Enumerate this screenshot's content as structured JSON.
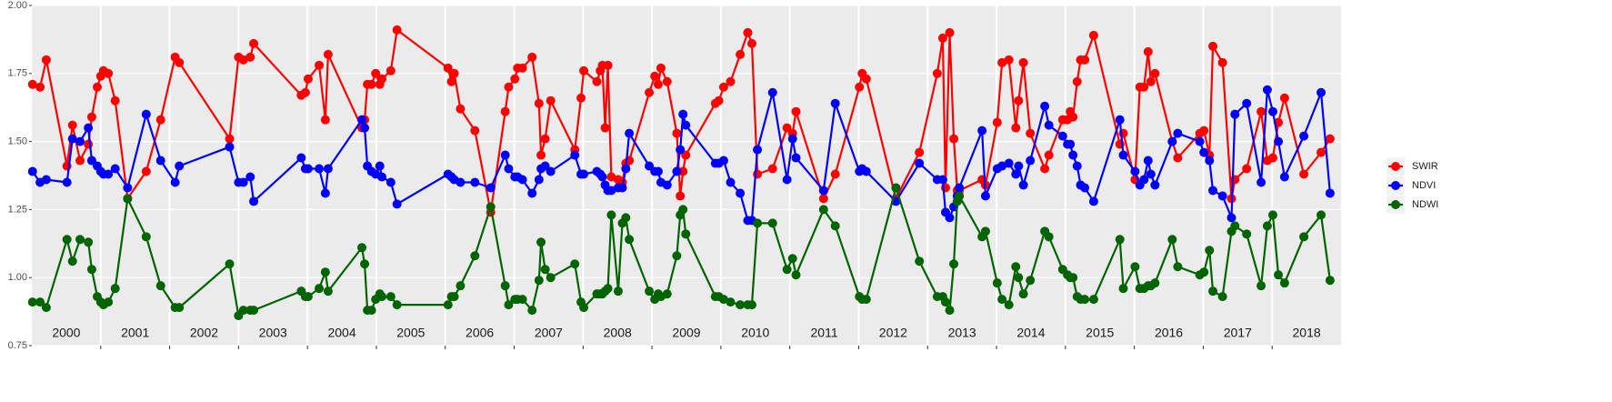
{
  "chart_data": {
    "type": "line",
    "x": [
      2000.01,
      2000.12,
      2000.21,
      2000.51,
      2000.59,
      2000.7,
      2000.82,
      2000.87,
      2000.95,
      2001.0,
      2001.04,
      2001.11,
      2001.21,
      2001.39,
      2001.66,
      2001.87,
      2002.08,
      2002.14,
      2002.87,
      2003.0,
      2003.07,
      2003.17,
      2003.22,
      2003.91,
      2003.97,
      2004.01,
      2004.17,
      2004.26,
      2004.3,
      2004.79,
      2004.83,
      2004.87,
      2004.93,
      2004.99,
      2005.05,
      2005.08,
      2005.21,
      2005.3,
      2006.04,
      2006.09,
      2006.13,
      2006.22,
      2006.43,
      2006.66,
      2006.87,
      2006.92,
      2007.01,
      2007.05,
      2007.12,
      2007.26,
      2007.36,
      2007.39,
      2007.45,
      2007.53,
      2007.88,
      2007.97,
      2008.01,
      2008.2,
      2008.25,
      2008.28,
      2008.32,
      2008.36,
      2008.41,
      2008.51,
      2008.57,
      2008.62,
      2008.67,
      2008.96,
      2009.04,
      2009.09,
      2009.13,
      2009.22,
      2009.36,
      2009.41,
      2009.45,
      2009.49,
      2009.92,
      2009.97,
      2010.04,
      2010.14,
      2010.28,
      2010.39,
      2010.45,
      2010.53,
      2010.75,
      2010.96,
      2011.04,
      2011.09,
      2011.49,
      2011.66,
      2012.01,
      2012.05,
      2012.11,
      2012.54,
      2012.88,
      2013.14,
      2013.22,
      2013.26,
      2013.32,
      2013.38,
      2013.43,
      2013.46,
      2013.79,
      2013.84,
      2014.01,
      2014.08,
      2014.18,
      2014.28,
      2014.32,
      2014.39,
      2014.49,
      2014.7,
      2014.76,
      2014.96,
      2015.03,
      2015.07,
      2015.11,
      2015.17,
      2015.22,
      2015.28,
      2015.41,
      2015.79,
      2015.84,
      2016.01,
      2016.08,
      2016.14,
      2016.2,
      2016.24,
      2016.3,
      2016.55,
      2016.63,
      2016.95,
      2017.01,
      2017.09,
      2017.14,
      2017.28,
      2017.41,
      2017.46,
      2017.63,
      2017.84,
      2017.93,
      2018.01,
      2018.09,
      2018.18,
      2018.46,
      2018.71,
      2018.84
    ],
    "series": [
      {
        "name": "SWIR",
        "color": "#ff0000",
        "values": [
          1.71,
          1.7,
          1.8,
          1.41,
          1.56,
          1.43,
          1.49,
          1.59,
          1.7,
          1.74,
          1.76,
          1.75,
          1.65,
          1.29,
          1.39,
          1.58,
          1.81,
          1.79,
          1.51,
          1.81,
          1.8,
          1.81,
          1.86,
          1.67,
          1.68,
          1.73,
          1.78,
          1.58,
          1.82,
          1.55,
          1.58,
          1.71,
          1.71,
          1.75,
          1.71,
          1.73,
          1.76,
          1.91,
          1.77,
          1.72,
          1.75,
          1.62,
          1.54,
          1.24,
          1.61,
          1.7,
          1.73,
          1.77,
          1.77,
          1.81,
          1.64,
          1.45,
          1.51,
          1.65,
          1.47,
          1.66,
          1.76,
          1.72,
          1.76,
          1.78,
          1.55,
          1.78,
          1.37,
          1.36,
          1.35,
          1.42,
          1.43,
          1.68,
          1.74,
          1.71,
          1.77,
          1.72,
          1.53,
          1.3,
          1.39,
          1.45,
          1.64,
          1.65,
          1.7,
          1.72,
          1.82,
          1.9,
          1.86,
          1.38,
          1.4,
          1.55,
          1.53,
          1.61,
          1.29,
          1.38,
          1.7,
          1.75,
          1.73,
          1.29,
          1.46,
          1.75,
          1.88,
          1.33,
          1.9,
          1.51,
          1.32,
          1.32,
          1.36,
          1.34,
          1.57,
          1.79,
          1.8,
          1.55,
          1.65,
          1.79,
          1.53,
          1.4,
          1.45,
          1.58,
          1.58,
          1.61,
          1.59,
          1.72,
          1.8,
          1.8,
          1.89,
          1.49,
          1.53,
          1.36,
          1.7,
          1.7,
          1.83,
          1.72,
          1.75,
          1.5,
          1.44,
          1.53,
          1.54,
          1.45,
          1.85,
          1.79,
          1.29,
          1.36,
          1.4,
          1.61,
          1.43,
          1.44,
          1.57,
          1.66,
          1.38,
          1.46,
          1.51
        ]
      },
      {
        "name": "NDVI",
        "color": "#0000ff",
        "values": [
          1.39,
          1.35,
          1.36,
          1.35,
          1.51,
          1.5,
          1.55,
          1.43,
          1.41,
          1.39,
          1.38,
          1.38,
          1.4,
          1.33,
          1.6,
          1.43,
          1.35,
          1.41,
          1.48,
          1.35,
          1.35,
          1.37,
          1.28,
          1.44,
          1.4,
          1.4,
          1.4,
          1.31,
          1.4,
          1.58,
          1.55,
          1.41,
          1.39,
          1.38,
          1.41,
          1.37,
          1.35,
          1.27,
          1.38,
          1.37,
          1.36,
          1.35,
          1.35,
          1.33,
          1.45,
          1.4,
          1.37,
          1.37,
          1.36,
          1.31,
          1.36,
          1.4,
          1.41,
          1.39,
          1.45,
          1.38,
          1.38,
          1.39,
          1.38,
          1.37,
          1.34,
          1.32,
          1.32,
          1.33,
          1.33,
          1.4,
          1.53,
          1.41,
          1.39,
          1.39,
          1.35,
          1.34,
          1.39,
          1.47,
          1.6,
          1.56,
          1.42,
          1.42,
          1.43,
          1.35,
          1.31,
          1.21,
          1.21,
          1.47,
          1.68,
          1.36,
          1.51,
          1.44,
          1.32,
          1.64,
          1.39,
          1.4,
          1.39,
          1.28,
          1.42,
          1.36,
          1.36,
          1.24,
          1.22,
          1.26,
          1.3,
          1.33,
          1.54,
          1.3,
          1.4,
          1.41,
          1.42,
          1.38,
          1.41,
          1.34,
          1.43,
          1.63,
          1.56,
          1.52,
          1.49,
          1.49,
          1.45,
          1.41,
          1.34,
          1.33,
          1.28,
          1.58,
          1.45,
          1.39,
          1.34,
          1.36,
          1.43,
          1.38,
          1.34,
          1.5,
          1.53,
          1.5,
          1.46,
          1.43,
          1.32,
          1.3,
          1.22,
          1.6,
          1.64,
          1.35,
          1.69,
          1.61,
          1.5,
          1.37,
          1.52,
          1.68,
          1.31
        ]
      },
      {
        "name": "NDWI",
        "color": "#006400",
        "values": [
          0.91,
          0.91,
          0.89,
          1.14,
          1.06,
          1.14,
          1.13,
          1.03,
          0.93,
          0.91,
          0.9,
          0.91,
          0.96,
          1.29,
          1.15,
          0.97,
          0.89,
          0.89,
          1.05,
          0.86,
          0.88,
          0.88,
          0.88,
          0.95,
          0.93,
          0.93,
          0.96,
          1.02,
          0.95,
          1.11,
          1.05,
          0.88,
          0.88,
          0.92,
          0.94,
          0.93,
          0.93,
          0.9,
          0.9,
          0.93,
          0.93,
          0.97,
          1.08,
          1.26,
          0.97,
          0.9,
          0.92,
          0.92,
          0.92,
          0.88,
          0.99,
          1.13,
          1.03,
          1.0,
          1.05,
          0.91,
          0.89,
          0.94,
          0.94,
          0.94,
          0.95,
          0.96,
          1.23,
          0.95,
          1.2,
          1.22,
          1.14,
          0.95,
          0.92,
          0.94,
          0.93,
          0.94,
          1.08,
          1.23,
          1.25,
          1.16,
          0.93,
          0.93,
          0.92,
          0.91,
          0.9,
          0.9,
          0.9,
          1.2,
          1.2,
          1.03,
          1.07,
          1.01,
          1.25,
          1.19,
          0.93,
          0.92,
          0.92,
          1.33,
          1.06,
          0.93,
          0.93,
          0.91,
          0.88,
          1.05,
          1.28,
          1.3,
          1.15,
          1.17,
          0.98,
          0.92,
          0.9,
          1.04,
          1.0,
          0.94,
          0.99,
          1.17,
          1.15,
          1.03,
          1.01,
          1.0,
          1.0,
          0.93,
          0.92,
          0.92,
          0.92,
          1.14,
          0.96,
          1.04,
          0.96,
          0.96,
          0.97,
          0.97,
          0.98,
          1.14,
          1.04,
          1.01,
          1.02,
          1.1,
          0.95,
          0.93,
          1.17,
          1.19,
          1.16,
          0.97,
          1.19,
          1.23,
          1.01,
          0.98,
          1.15,
          1.23,
          0.99
        ]
      }
    ],
    "xlim": [
      2000,
      2019
    ],
    "xticks": [
      {
        "value": 2000.5,
        "label": "2000"
      },
      {
        "value": 2001.5,
        "label": "2001"
      },
      {
        "value": 2002.5,
        "label": "2002"
      },
      {
        "value": 2003.5,
        "label": "2003"
      },
      {
        "value": 2004.5,
        "label": "2004"
      },
      {
        "value": 2005.5,
        "label": "2005"
      },
      {
        "value": 2006.5,
        "label": "2006"
      },
      {
        "value": 2007.5,
        "label": "2007"
      },
      {
        "value": 2008.5,
        "label": "2008"
      },
      {
        "value": 2009.5,
        "label": "2009"
      },
      {
        "value": 2010.5,
        "label": "2010"
      },
      {
        "value": 2011.5,
        "label": "2011"
      },
      {
        "value": 2012.5,
        "label": "2012"
      },
      {
        "value": 2013.5,
        "label": "2013"
      },
      {
        "value": 2014.5,
        "label": "2014"
      },
      {
        "value": 2015.5,
        "label": "2015"
      },
      {
        "value": 2016.5,
        "label": "2016"
      },
      {
        "value": 2017.5,
        "label": "2017"
      },
      {
        "value": 2018.5,
        "label": "2018"
      }
    ],
    "ylim": [
      0.75,
      2
    ],
    "yticks": [
      0.75,
      {
        "value": 1,
        "label": "1.00"
      },
      1.25,
      {
        "value": 1.5,
        "label": "1.50"
      },
      1.75,
      {
        "value": 2,
        "label": "2.00"
      }
    ],
    "grid": true,
    "legend": "right"
  }
}
